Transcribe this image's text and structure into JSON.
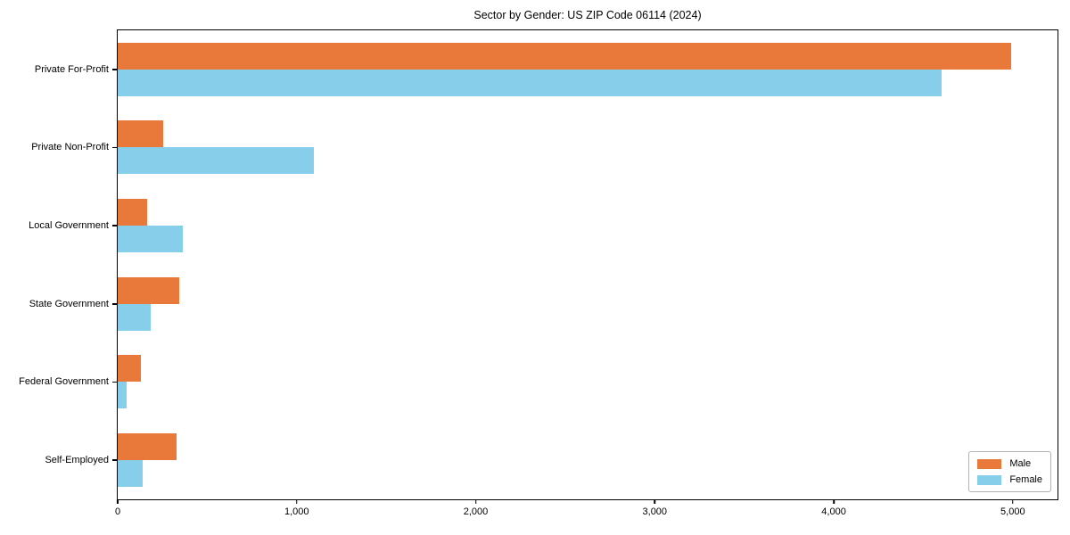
{
  "title": "Sector by Gender: US ZIP Code 06114 (2024)",
  "colors": {
    "male": "#e8793b",
    "female": "#87ceeb",
    "axis": "#000000",
    "legend_border": "#b3b3b3",
    "background": "#ffffff"
  },
  "legend": {
    "position": "lower right",
    "items": [
      {
        "label": "Male",
        "color": "#e8793b"
      },
      {
        "label": "Female",
        "color": "#87ceeb"
      }
    ]
  },
  "chart_data": {
    "type": "bar",
    "orientation": "horizontal",
    "title": "Sector by Gender: US ZIP Code 06114 (2024)",
    "categories": [
      "Private For-Profit",
      "Private Non-Profit",
      "Local Government",
      "State Government",
      "Federal Government",
      "Self-Employed"
    ],
    "series": [
      {
        "name": "Male",
        "color": "#e8793b",
        "values": [
          4990,
          255,
          165,
          345,
          130,
          330
        ]
      },
      {
        "name": "Female",
        "color": "#87ceeb",
        "values": [
          4600,
          1095,
          365,
          185,
          50,
          140
        ]
      }
    ],
    "xlabel": "",
    "ylabel": "",
    "xlim": [
      0,
      5250
    ],
    "x_ticks": [
      0,
      1000,
      2000,
      3000,
      4000,
      5000
    ],
    "x_tick_labels": [
      "0",
      "1,000",
      "2,000",
      "3,000",
      "4,000",
      "5,000"
    ],
    "grid": false,
    "legend_position": "lower right"
  }
}
